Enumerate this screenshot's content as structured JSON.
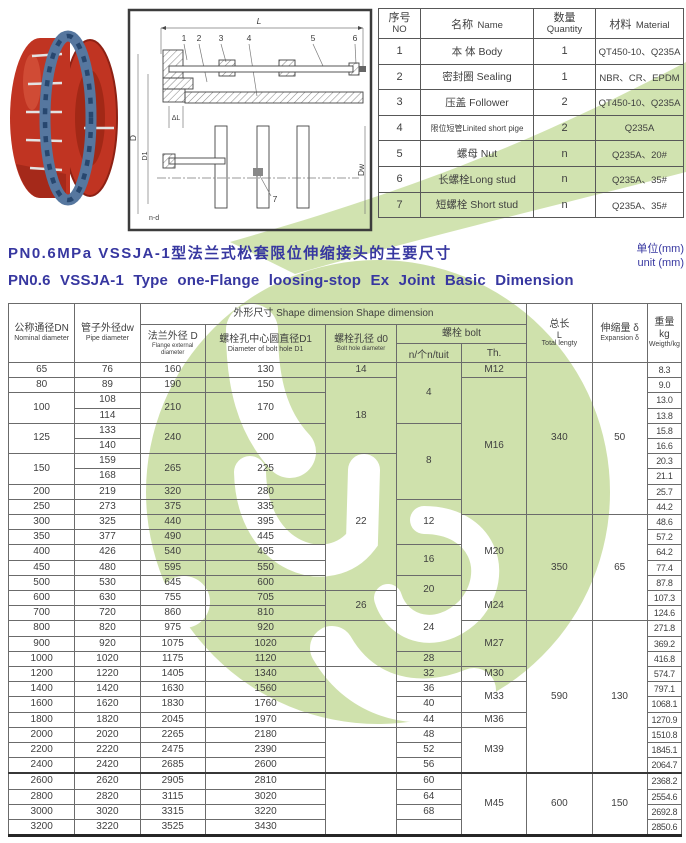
{
  "page": {
    "unit_cn": "单位(mm)",
    "unit_en": "unit (mm)"
  },
  "title": {
    "line1": "PN0.6MPa VSSJA-1型法兰式松套限位伸缩接头的主要尺寸",
    "line2": "PN0.6 VSSJA-1 Type one-Flange loosing-stop Ex Joint Basic Dimension"
  },
  "colors": {
    "accent_blue": "#3737a0",
    "watermark_green": "#cfe1ac",
    "table_line": "#6b6b6b",
    "photo_red": "#c03422",
    "photo_blue": "#56779f"
  },
  "drawing": {
    "callouts": [
      "1",
      "2",
      "3",
      "4",
      "5",
      "6",
      "7"
    ],
    "labels": {
      "total_length": "L",
      "delta_l": "ΔL",
      "d": "D",
      "d1": "D1",
      "dw": "Dw",
      "bolt_holes": "n-d"
    }
  },
  "parts_table": {
    "headers": [
      {
        "cn": "序号",
        "en": "NO"
      },
      {
        "cn": "名称",
        "en": "Name"
      },
      {
        "cn": "数量",
        "en": "Quantity"
      },
      {
        "cn": "材料",
        "en": "Material"
      }
    ],
    "rows": [
      {
        "no": "1",
        "name": "本 体 Body",
        "qty": "1",
        "material": "QT450-10、Q235A"
      },
      {
        "no": "2",
        "name": "密封圈 Sealing",
        "qty": "1",
        "material": "NBR、CR、EPDM"
      },
      {
        "no": "3",
        "name": "压盖 Follower",
        "qty": "2",
        "material": "QT450-10、Q235A"
      },
      {
        "no": "4",
        "name": "限位短管Linited short pige",
        "qty": "2",
        "material": "Q235A"
      },
      {
        "no": "5",
        "name": "螺母 Nut",
        "qty": "n",
        "material": "Q235A、20#"
      },
      {
        "no": "6",
        "name": "长螺栓Long stud",
        "qty": "n",
        "material": "Q235A、35#"
      },
      {
        "no": "7",
        "name": "短螺栓 Short stud",
        "qty": "n",
        "material": "Q235A、35#"
      }
    ]
  },
  "main_table": {
    "cols": {
      "dn": {
        "cn": "公称通径DN",
        "en": "Nominal diameter"
      },
      "dw": {
        "cn": "管子外径dw",
        "en": "Pipe diameter"
      },
      "group": {
        "label": "外形尺寸 Shape dimension Shape dimension"
      },
      "d": {
        "cn": "法兰外径 D",
        "en": "Flange external diameter"
      },
      "d1": {
        "cn": "螺栓孔中心圆直径D1",
        "en": "Diameter  of bolt  hole  D1"
      },
      "d0": {
        "cn": "螺栓孔径 d0",
        "en": "Bolt hole diameter"
      },
      "bolt": {
        "label": "螺栓 bolt",
        "sub_n": "n/个n/tuit",
        "sub_th": "Th."
      },
      "l": {
        "cn": "总长",
        "mid": "L",
        "en": "Total lengty"
      },
      "delta": {
        "cn": "伸缩量 δ",
        "en": "Expansion δ"
      },
      "kg": {
        "cn": "重量 kg",
        "en": "Weigth/kg"
      }
    },
    "rows": [
      [
        {
          "t": "65"
        },
        {
          "t": "76"
        },
        {
          "t": "160"
        },
        {
          "t": "130"
        },
        {
          "t": "14"
        },
        {
          "t": "4",
          "rs": 4
        },
        {
          "t": "M12"
        },
        {
          "t": "340",
          "rs": 10
        },
        {
          "t": "50",
          "rs": 10
        },
        {
          "t": "8.3"
        }
      ],
      [
        {
          "t": "80"
        },
        {
          "t": "89"
        },
        {
          "t": "190"
        },
        {
          "t": "150"
        },
        {
          "t": "18",
          "rs": 5
        },
        {
          "t": "M16",
          "rs": 9
        },
        {
          "t": "9.0"
        }
      ],
      [
        {
          "t": "100",
          "rs": 2
        },
        {
          "t": "108"
        },
        {
          "t": "210",
          "rs": 2
        },
        {
          "t": "170",
          "rs": 2
        },
        {
          "t": "13.0"
        }
      ],
      [
        {
          "t": "114"
        },
        {
          "t": "13.8"
        }
      ],
      [
        {
          "t": "125",
          "rs": 2
        },
        {
          "t": "133"
        },
        {
          "t": "240",
          "rs": 2
        },
        {
          "t": "200",
          "rs": 2
        },
        {
          "t": "8",
          "rs": 5
        },
        {
          "t": "15.8"
        }
      ],
      [
        {
          "t": "140"
        },
        {
          "t": "16.6"
        }
      ],
      [
        {
          "t": "150",
          "rs": 2
        },
        {
          "t": "159"
        },
        {
          "t": "265",
          "rs": 2
        },
        {
          "t": "225",
          "rs": 2
        },
        {
          "t": "22",
          "rs": 9
        },
        {
          "t": "20.3"
        }
      ],
      [
        {
          "t": "168"
        },
        {
          "t": "21.1"
        }
      ],
      [
        {
          "t": "200"
        },
        {
          "t": "219"
        },
        {
          "t": "320"
        },
        {
          "t": "280"
        },
        {
          "t": "25.7"
        }
      ],
      [
        {
          "t": "250"
        },
        {
          "t": "273"
        },
        {
          "t": "375"
        },
        {
          "t": "335"
        },
        {
          "t": "12",
          "rs": 3
        },
        {
          "t": "44.2"
        }
      ],
      [
        {
          "t": "300"
        },
        {
          "t": "325"
        },
        {
          "t": "440"
        },
        {
          "t": "395"
        },
        {
          "t": "M20",
          "rs": 5
        },
        {
          "t": "350",
          "rs": 7
        },
        {
          "t": "65",
          "rs": 7
        },
        {
          "t": "48.6"
        }
      ],
      [
        {
          "t": "350"
        },
        {
          "t": "377"
        },
        {
          "t": "490"
        },
        {
          "t": "445"
        },
        {
          "t": "57.2"
        }
      ],
      [
        {
          "t": "400"
        },
        {
          "t": "426"
        },
        {
          "t": "540"
        },
        {
          "t": "495"
        },
        {
          "t": "16",
          "rs": 2
        },
        {
          "t": "64.2"
        }
      ],
      [
        {
          "t": "450"
        },
        {
          "t": "480"
        },
        {
          "t": "595"
        },
        {
          "t": "550"
        },
        {
          "t": "77.4"
        }
      ],
      [
        {
          "t": "500"
        },
        {
          "t": "530"
        },
        {
          "t": "645"
        },
        {
          "t": "600"
        },
        {
          "t": "20",
          "rs": 2
        },
        {
          "t": "87.8"
        }
      ],
      [
        {
          "t": "600"
        },
        {
          "t": "630"
        },
        {
          "t": "755"
        },
        {
          "t": "705"
        },
        {
          "t": "26",
          "rs": 2
        },
        {
          "t": "M24",
          "rs": 2
        },
        {
          "t": "107.3"
        }
      ],
      [
        {
          "t": "700"
        },
        {
          "t": "720"
        },
        {
          "t": "860"
        },
        {
          "t": "810"
        },
        {
          "t": "24",
          "rs": 3
        },
        {
          "t": "124.6"
        }
      ],
      [
        {
          "t": "800"
        },
        {
          "t": "820"
        },
        {
          "t": "975"
        },
        {
          "t": "920"
        },
        {
          "t": "",
          "rs": 3
        },
        {
          "t": "M27",
          "rs": 3
        },
        {
          "t": "590",
          "rs": 10
        },
        {
          "t": "130",
          "rs": 10
        },
        {
          "t": "271.8"
        }
      ],
      [
        {
          "t": "900"
        },
        {
          "t": "920"
        },
        {
          "t": "1075"
        },
        {
          "t": "1020"
        },
        {
          "t": "369.2"
        }
      ],
      [
        {
          "t": "1000"
        },
        {
          "t": "1020"
        },
        {
          "t": "1175"
        },
        {
          "t": "1120"
        },
        {
          "t": "28"
        },
        {
          "t": "416.8"
        }
      ],
      [
        {
          "t": "1200"
        },
        {
          "t": "1220"
        },
        {
          "t": "1405"
        },
        {
          "t": "1340"
        },
        {
          "t": "",
          "rs": 4
        },
        {
          "t": "32"
        },
        {
          "t": "M30"
        },
        {
          "t": "574.7"
        }
      ],
      [
        {
          "t": "1400"
        },
        {
          "t": "1420"
        },
        {
          "t": "1630"
        },
        {
          "t": "1560"
        },
        {
          "t": "36"
        },
        {
          "t": "M33",
          "rs": 2
        },
        {
          "t": "797.1"
        }
      ],
      [
        {
          "t": "1600"
        },
        {
          "t": "1620"
        },
        {
          "t": "1830"
        },
        {
          "t": "1760"
        },
        {
          "t": "40"
        },
        {
          "t": "1068.1"
        }
      ],
      [
        {
          "t": "1800"
        },
        {
          "t": "1820"
        },
        {
          "t": "2045"
        },
        {
          "t": "1970"
        },
        {
          "t": "44"
        },
        {
          "t": "M36"
        },
        {
          "t": "1270.9"
        }
      ],
      [
        {
          "t": "2000"
        },
        {
          "t": "2020"
        },
        {
          "t": "2265"
        },
        {
          "t": "2180"
        },
        {
          "t": "",
          "rs": 3
        },
        {
          "t": "48"
        },
        {
          "t": "M39",
          "rs": 3
        },
        {
          "t": "1510.8"
        }
      ],
      [
        {
          "t": "2200"
        },
        {
          "t": "2220"
        },
        {
          "t": "2475"
        },
        {
          "t": "2390"
        },
        {
          "t": "52"
        },
        {
          "t": "1845.1"
        }
      ],
      [
        {
          "t": "2400"
        },
        {
          "t": "2420"
        },
        {
          "t": "2685"
        },
        {
          "t": "2600"
        },
        {
          "t": "56"
        },
        {
          "t": "2064.7"
        }
      ],
      [
        {
          "t": "2600"
        },
        {
          "t": "2620"
        },
        {
          "t": "2905"
        },
        {
          "t": "2810"
        },
        {
          "t": "",
          "rs": 4
        },
        {
          "t": "60"
        },
        {
          "t": "M45",
          "rs": 4
        },
        {
          "t": "600",
          "rs": 4
        },
        {
          "t": "150",
          "rs": 4
        },
        {
          "t": "2368.2"
        }
      ],
      [
        {
          "t": "2800"
        },
        {
          "t": "2820"
        },
        {
          "t": "3115"
        },
        {
          "t": "3020"
        },
        {
          "t": "64"
        },
        {
          "t": "2554.6"
        }
      ],
      [
        {
          "t": "3000"
        },
        {
          "t": "3020"
        },
        {
          "t": "3315"
        },
        {
          "t": "3220"
        },
        {
          "t": "68"
        },
        {
          "t": "2692.8"
        }
      ],
      [
        {
          "t": "3200"
        },
        {
          "t": "3220"
        },
        {
          "t": "3525"
        },
        {
          "t": "3430"
        },
        {
          "t": ""
        },
        {
          "t": "2850.6"
        }
      ]
    ]
  }
}
